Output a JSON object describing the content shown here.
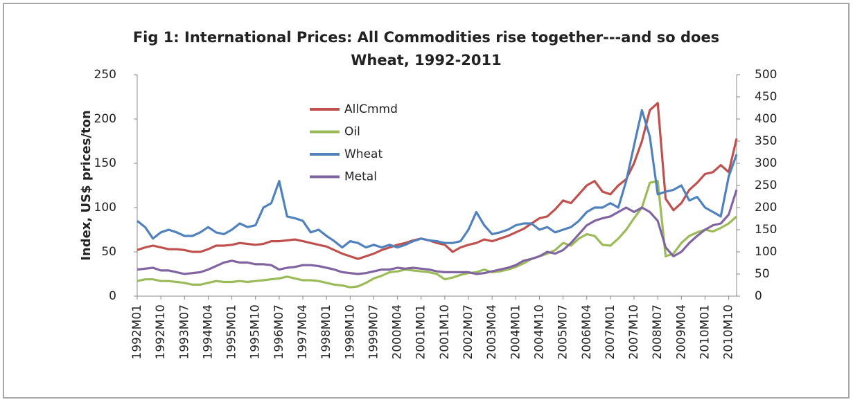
{
  "chart_data": {
    "type": "line",
    "title": [
      "Fig 1: International Prices: All Commodities rise together---and so does",
      "Wheat, 1992-2011"
    ],
    "ylabel": "Index, US$ prices/ton",
    "categories": [
      "1992M01",
      null,
      null,
      "1992M10",
      null,
      null,
      "1993M07",
      null,
      null,
      "1994M04",
      null,
      null,
      "1995M01",
      null,
      null,
      "1995M10",
      null,
      null,
      "1996M07",
      null,
      null,
      "1997M04",
      null,
      null,
      "1998M01",
      null,
      null,
      "1998M10",
      null,
      null,
      "1999M07",
      null,
      null,
      "2000M04",
      null,
      null,
      "2001M01",
      null,
      null,
      "2001M10",
      null,
      null,
      "2002M07",
      null,
      null,
      "2003M04",
      null,
      null,
      "2004M01",
      null,
      null,
      "2004M10",
      null,
      null,
      "2005M07",
      null,
      null,
      "2006M04",
      null,
      null,
      "2007M01",
      null,
      null,
      "2007M10",
      null,
      null,
      "2008M07",
      null,
      null,
      "2009M04",
      null,
      null,
      "2010M01",
      null,
      null,
      "2010M10",
      null
    ],
    "ylim": [
      0,
      250
    ],
    "yticks": [
      0,
      50,
      100,
      150,
      200,
      250
    ],
    "y2lim": [
      0,
      500
    ],
    "y2ticks": [
      0,
      50,
      100,
      150,
      200,
      250,
      300,
      350,
      400,
      450,
      500
    ],
    "grid": false,
    "legend": "upper-left",
    "series": [
      {
        "name": "AllCmmd",
        "color": "#c0504d",
        "values": [
          52,
          55,
          57,
          55,
          53,
          53,
          52,
          50,
          50,
          53,
          57,
          57,
          58,
          60,
          59,
          58,
          59,
          62,
          62,
          63,
          64,
          62,
          60,
          58,
          56,
          52,
          48,
          45,
          42,
          45,
          48,
          52,
          55,
          58,
          60,
          63,
          65,
          63,
          60,
          58,
          50,
          55,
          58,
          60,
          64,
          62,
          65,
          68,
          72,
          76,
          82,
          88,
          90,
          98,
          108,
          105,
          115,
          125,
          130,
          118,
          115,
          125,
          132,
          150,
          175,
          210,
          218,
          110,
          97,
          105,
          120,
          128,
          138,
          140,
          148,
          140,
          178
        ]
      },
      {
        "name": "Oil",
        "color": "#9bbb59",
        "axis": "y2",
        "values": [
          34,
          38,
          38,
          34,
          34,
          32,
          30,
          26,
          26,
          30,
          34,
          32,
          32,
          34,
          32,
          34,
          36,
          38,
          40,
          44,
          40,
          36,
          36,
          34,
          30,
          26,
          24,
          20,
          22,
          30,
          40,
          46,
          54,
          56,
          60,
          58,
          56,
          54,
          50,
          38,
          42,
          48,
          52,
          54,
          60,
          54,
          56,
          60,
          66,
          74,
          84,
          90,
          96,
          104,
          120,
          114,
          130,
          140,
          136,
          116,
          114,
          130,
          150,
          176,
          200,
          256,
          260,
          90,
          96,
          120,
          136,
          144,
          150,
          146,
          154,
          164,
          180
        ]
      },
      {
        "name": "Wheat",
        "color": "#4f81bd",
        "axis": "y2",
        "values": [
          170,
          156,
          130,
          144,
          150,
          144,
          136,
          136,
          144,
          156,
          144,
          140,
          150,
          164,
          156,
          160,
          200,
          210,
          260,
          180,
          176,
          170,
          144,
          150,
          136,
          124,
          110,
          124,
          120,
          110,
          116,
          110,
          116,
          110,
          116,
          124,
          130,
          126,
          124,
          120,
          120,
          124,
          150,
          190,
          160,
          140,
          144,
          150,
          160,
          164,
          164,
          150,
          156,
          144,
          150,
          156,
          170,
          190,
          200,
          200,
          210,
          200,
          260,
          340,
          420,
          360,
          230,
          236,
          240,
          250,
          216,
          224,
          200,
          190,
          180,
          270,
          320
        ]
      },
      {
        "name": "Metal",
        "color": "#8064a2",
        "axis": "y2",
        "values": [
          60,
          62,
          64,
          58,
          58,
          54,
          50,
          52,
          54,
          60,
          68,
          76,
          80,
          76,
          76,
          72,
          72,
          70,
          60,
          64,
          66,
          70,
          70,
          68,
          64,
          60,
          54,
          52,
          50,
          52,
          56,
          60,
          60,
          64,
          62,
          64,
          62,
          60,
          56,
          54,
          54,
          54,
          54,
          50,
          52,
          56,
          60,
          64,
          70,
          80,
          84,
          90,
          100,
          96,
          104,
          120,
          140,
          160,
          170,
          176,
          180,
          190,
          200,
          190,
          200,
          190,
          170,
          110,
          90,
          100,
          120,
          136,
          150,
          160,
          164,
          184,
          240
        ]
      }
    ]
  }
}
